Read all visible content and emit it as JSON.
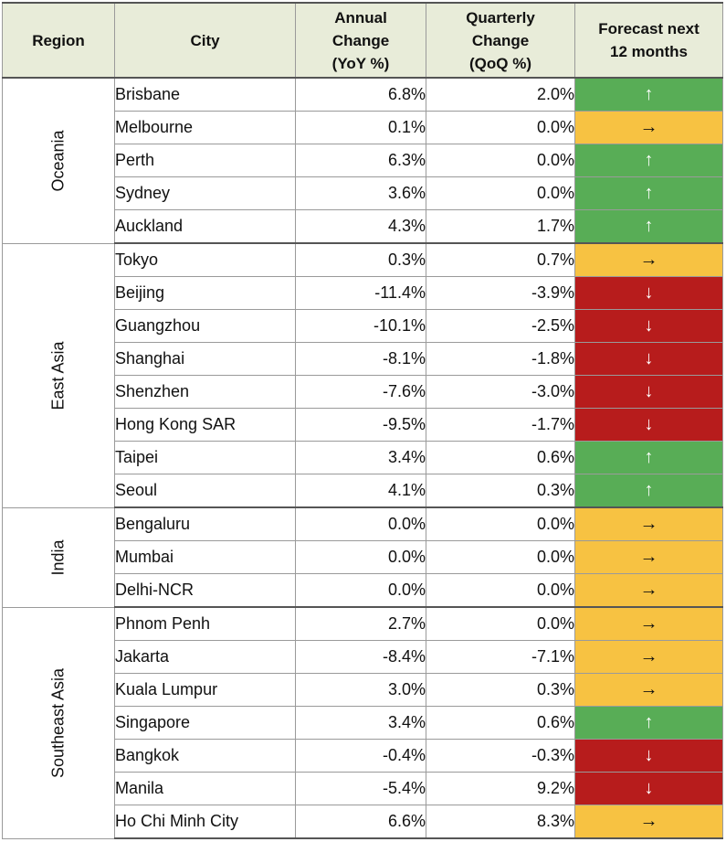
{
  "headers": {
    "region": "Region",
    "city": "City",
    "annual_l1": "Annual",
    "annual_l2": "Change",
    "annual_l3": "(YoY %)",
    "quarterly_l1": "Quarterly",
    "quarterly_l2": "Change",
    "quarterly_l3": "(QoQ %)",
    "forecast_l1": "Forecast next",
    "forecast_l2": "12 months"
  },
  "arrows": {
    "up": "↑",
    "flat": "→",
    "down": "↓"
  },
  "colors": {
    "up": "#58ad56",
    "flat": "#f7c242",
    "down": "#b71c1c",
    "header_bg": "#e8ecd9"
  },
  "regions": [
    {
      "name": "Oceania",
      "rows": [
        {
          "city": "Brisbane",
          "yoy": "6.8%",
          "qoq": "2.0%",
          "forecast": "up"
        },
        {
          "city": "Melbourne",
          "yoy": "0.1%",
          "qoq": "0.0%",
          "forecast": "flat"
        },
        {
          "city": "Perth",
          "yoy": "6.3%",
          "qoq": "0.0%",
          "forecast": "up"
        },
        {
          "city": "Sydney",
          "yoy": "3.6%",
          "qoq": "0.0%",
          "forecast": "up"
        },
        {
          "city": "Auckland",
          "yoy": "4.3%",
          "qoq": "1.7%",
          "forecast": "up"
        }
      ]
    },
    {
      "name": "East Asia",
      "rows": [
        {
          "city": "Tokyo",
          "yoy": "0.3%",
          "qoq": "0.7%",
          "forecast": "flat"
        },
        {
          "city": "Beijing",
          "yoy": "-11.4%",
          "qoq": "-3.9%",
          "forecast": "down"
        },
        {
          "city": "Guangzhou",
          "yoy": "-10.1%",
          "qoq": "-2.5%",
          "forecast": "down"
        },
        {
          "city": "Shanghai",
          "yoy": "-8.1%",
          "qoq": "-1.8%",
          "forecast": "down"
        },
        {
          "city": "Shenzhen",
          "yoy": "-7.6%",
          "qoq": "-3.0%",
          "forecast": "down"
        },
        {
          "city": "Hong Kong SAR",
          "yoy": "-9.5%",
          "qoq": "-1.7%",
          "forecast": "down"
        },
        {
          "city": "Taipei",
          "yoy": "3.4%",
          "qoq": "0.6%",
          "forecast": "up"
        },
        {
          "city": "Seoul",
          "yoy": "4.1%",
          "qoq": "0.3%",
          "forecast": "up"
        }
      ]
    },
    {
      "name": "India",
      "rows": [
        {
          "city": "Bengaluru",
          "yoy": "0.0%",
          "qoq": "0.0%",
          "forecast": "flat"
        },
        {
          "city": "Mumbai",
          "yoy": "0.0%",
          "qoq": "0.0%",
          "forecast": "flat"
        },
        {
          "city": "Delhi-NCR",
          "yoy": "0.0%",
          "qoq": "0.0%",
          "forecast": "flat"
        }
      ]
    },
    {
      "name": "Southeast Asia",
      "rows": [
        {
          "city": "Phnom Penh",
          "yoy": "2.7%",
          "qoq": "0.0%",
          "forecast": "flat"
        },
        {
          "city": "Jakarta",
          "yoy": "-8.4%",
          "qoq": "-7.1%",
          "forecast": "flat"
        },
        {
          "city": "Kuala Lumpur",
          "yoy": "3.0%",
          "qoq": "0.3%",
          "forecast": "flat"
        },
        {
          "city": "Singapore",
          "yoy": "3.4%",
          "qoq": "0.6%",
          "forecast": "up"
        },
        {
          "city": "Bangkok",
          "yoy": "-0.4%",
          "qoq": "-0.3%",
          "forecast": "down"
        },
        {
          "city": "Manila",
          "yoy": "-5.4%",
          "qoq": "9.2%",
          "forecast": "down"
        },
        {
          "city": "Ho Chi Minh City",
          "yoy": "6.6%",
          "qoq": "8.3%",
          "forecast": "flat"
        }
      ]
    }
  ]
}
